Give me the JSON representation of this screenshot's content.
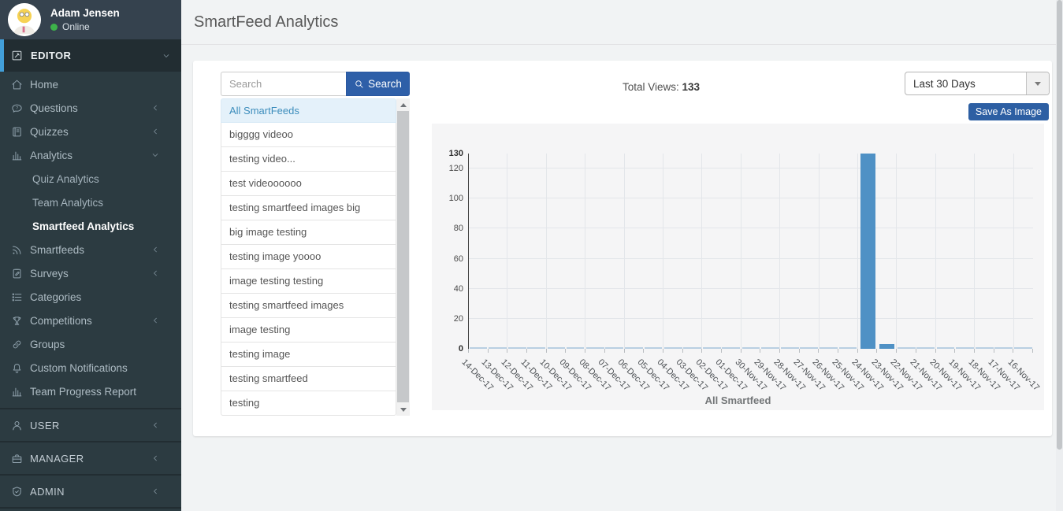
{
  "colors": {
    "accent_blue": "#429fd9",
    "button_blue": "#2e5fa8",
    "online_green": "#3db34a",
    "sidebar_bg": "#2c3b41",
    "sidebar_dark": "#222d32",
    "active_list_blue": "#3c8dbc"
  },
  "sidebar": {
    "profile": {
      "name": "Adam Jensen",
      "status": "Online"
    },
    "editor_header": {
      "label": "EDITOR",
      "icon": "editor-icon",
      "chevron": "down"
    },
    "menu": [
      {
        "id": "home",
        "label": "Home",
        "icon": "home-icon"
      },
      {
        "id": "questions",
        "label": "Questions",
        "icon": "questions-icon",
        "chevron": "left"
      },
      {
        "id": "quizzes",
        "label": "Quizzes",
        "icon": "quizzes-icon",
        "chevron": "left"
      },
      {
        "id": "analytics",
        "label": "Analytics",
        "icon": "analytics-icon",
        "chevron": "down",
        "submenu": [
          {
            "id": "quiz-analytics",
            "label": "Quiz Analytics"
          },
          {
            "id": "team-analytics",
            "label": "Team Analytics"
          },
          {
            "id": "smartfeed-analytics",
            "label": "Smartfeed Analytics",
            "active": true
          }
        ]
      },
      {
        "id": "smartfeeds",
        "label": "Smartfeeds",
        "icon": "smartfeeds-icon",
        "chevron": "left"
      },
      {
        "id": "surveys",
        "label": "Surveys",
        "icon": "surveys-icon",
        "chevron": "left"
      },
      {
        "id": "categories",
        "label": "Categories",
        "icon": "categories-icon"
      },
      {
        "id": "competitions",
        "label": "Competitions",
        "icon": "competitions-icon",
        "chevron": "left"
      },
      {
        "id": "groups",
        "label": "Groups",
        "icon": "groups-icon"
      },
      {
        "id": "custom-notifications",
        "label": "Custom Notifications",
        "icon": "bell-icon"
      },
      {
        "id": "team-progress-report",
        "label": "Team Progress Report",
        "icon": "chart-bars-icon"
      }
    ],
    "sections": [
      {
        "id": "user",
        "label": "USER",
        "icon": "user-icon",
        "chevron": "left"
      },
      {
        "id": "manager",
        "label": "MANAGER",
        "icon": "briefcase-icon",
        "chevron": "left"
      },
      {
        "id": "admin",
        "label": "ADMIN",
        "icon": "shield-icon",
        "chevron": "left"
      }
    ]
  },
  "header": {
    "title": "SmartFeed Analytics"
  },
  "panel": {
    "search": {
      "placeholder": "Search",
      "button_label": "Search",
      "button_icon": "search-icon"
    },
    "feeds": [
      {
        "label": "All SmartFeeds",
        "active": true
      },
      {
        "label": "bigggg videoo"
      },
      {
        "label": "testing video..."
      },
      {
        "label": "test videoooooo"
      },
      {
        "label": "testing smartfeed images big"
      },
      {
        "label": "big image testing"
      },
      {
        "label": "testing image yoooo"
      },
      {
        "label": "image testing testing"
      },
      {
        "label": "testing smartfeed images"
      },
      {
        "label": "image testing"
      },
      {
        "label": "testing image"
      },
      {
        "label": "testing smartfeed"
      },
      {
        "label": "testing"
      }
    ],
    "total_views": {
      "label": "Total Views:",
      "value": "133"
    },
    "range_dropdown": {
      "selected": "Last 30 Days"
    },
    "save_button_label": "Save As Image"
  },
  "chart_data": {
    "type": "bar",
    "title": "",
    "legend": "All Smartfeed",
    "legend_position": "bottom",
    "categories": [
      "14-Dec-17",
      "13-Dec-17",
      "12-Dec-17",
      "11-Dec-17",
      "10-Dec-17",
      "09-Dec-17",
      "08-Dec-17",
      "07-Dec-17",
      "06-Dec-17",
      "05-Dec-17",
      "04-Dec-17",
      "03-Dec-17",
      "02-Dec-17",
      "01-Dec-17",
      "30-Nov-17",
      "29-Nov-17",
      "28-Nov-17",
      "27-Nov-17",
      "26-Nov-17",
      "25-Nov-17",
      "24-Nov-17",
      "23-Nov-17",
      "22-Nov-17",
      "21-Nov-17",
      "20-Nov-17",
      "19-Nov-17",
      "18-Nov-17",
      "17-Nov-17",
      "16-Nov-17"
    ],
    "values": [
      0,
      0,
      0,
      0,
      0,
      0,
      0,
      0,
      0,
      0,
      0,
      0,
      0,
      0,
      0,
      0,
      0,
      0,
      0,
      0,
      130,
      3,
      0,
      0,
      0,
      0,
      0,
      0,
      0
    ],
    "xlabel": "",
    "ylabel": "",
    "ylim": [
      0,
      130
    ],
    "yticks": [
      0,
      20,
      40,
      60,
      80,
      100,
      120,
      130
    ],
    "grid": true,
    "bar_color": "#4f91c5",
    "zero_value_color": "#b9cfe2"
  }
}
